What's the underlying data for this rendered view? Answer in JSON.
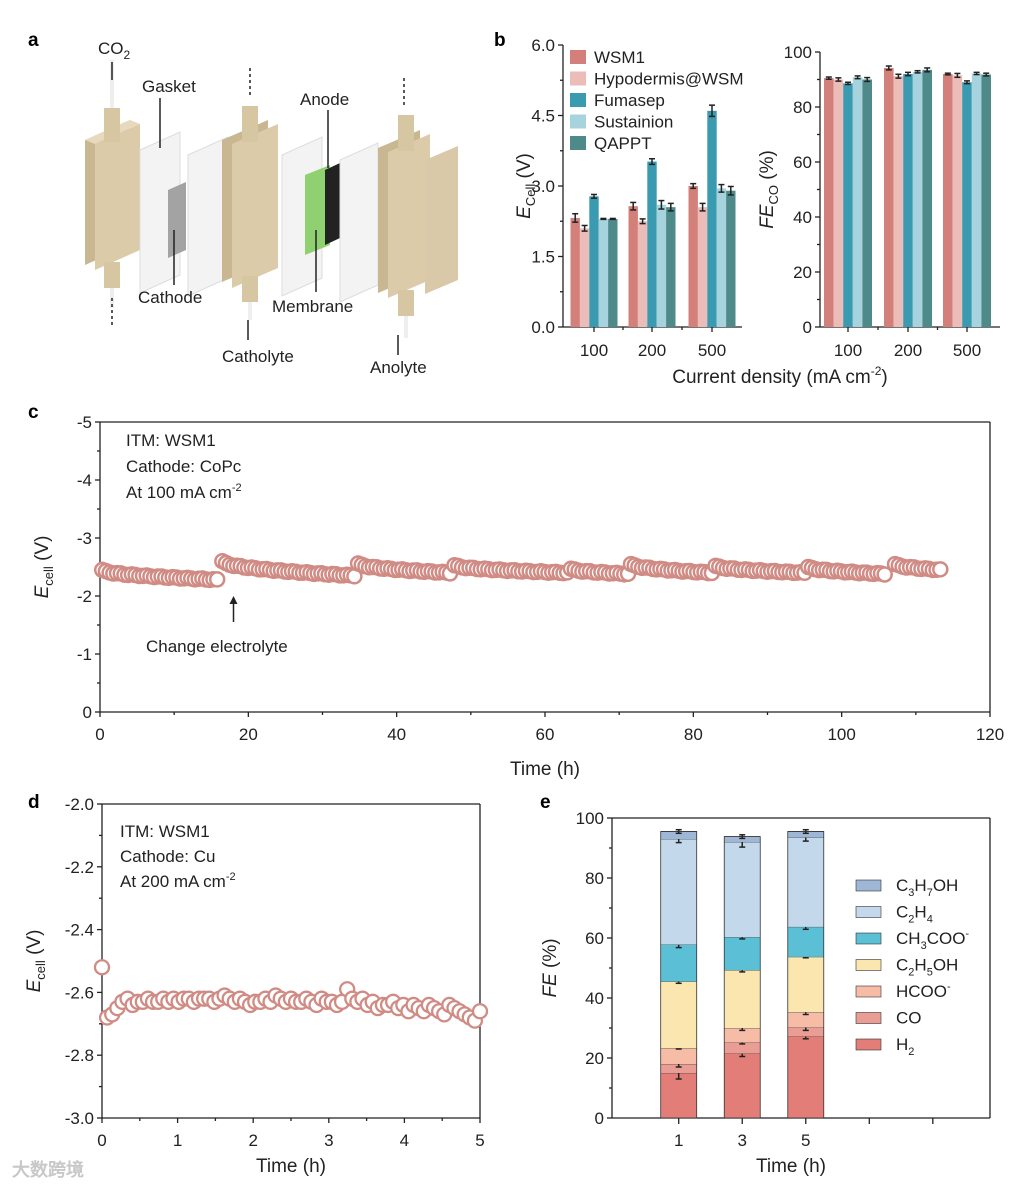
{
  "panels": {
    "a": "a",
    "b": "b",
    "c": "c",
    "d": "d",
    "e": "e"
  },
  "diagram_a": {
    "labels": {
      "co2": "CO",
      "co2_sub": "2",
      "gasket": "Gasket",
      "cathode": "Cathode",
      "catholyte": "Catholyte",
      "membrane": "Membrane",
      "anode": "Anode",
      "anolyte": "Anolyte"
    },
    "colors": {
      "plate": "#d9c9a8",
      "gasket": "#f1f1f1",
      "cathode": "#a3a3a3",
      "membrane": "#8fd070",
      "anode": "#222222"
    }
  },
  "watermark": "大数跨境",
  "chart_data": [
    {
      "id": "b_left",
      "type": "bar",
      "ylabel": "E",
      "ylabel_sub": "Cell",
      "ylabel_unit": " (V)",
      "xlabel": "Current density (mA cm",
      "xlabel_sup": "-2",
      "xlabel_end": ")",
      "categories": [
        "100",
        "200",
        "500"
      ],
      "ylim": [
        0,
        6
      ],
      "yticks": [
        "0.0",
        "1.5",
        "3.0",
        "4.5",
        "6.0"
      ],
      "legend_position": "top-left",
      "series": [
        {
          "name": "WSM1",
          "color": "#d4807a",
          "values": [
            2.32,
            2.57,
            3.0
          ],
          "err": [
            0.09,
            0.08,
            0.05
          ]
        },
        {
          "name": "Hypodermis@WSM",
          "color": "#ebbcb8",
          "values": [
            2.1,
            2.25,
            2.55
          ],
          "err": [
            0.06,
            0.05,
            0.08
          ]
        },
        {
          "name": "Fumasep",
          "color": "#3a9ab0",
          "values": [
            2.78,
            3.52,
            4.6
          ],
          "err": [
            0.04,
            0.06,
            0.12
          ]
        },
        {
          "name": "Sustainion",
          "color": "#a7d3de",
          "values": [
            2.3,
            2.6,
            2.95
          ],
          "err": [
            0.01,
            0.09,
            0.08
          ]
        },
        {
          "name": "QAPPT",
          "color": "#4f8a8b",
          "values": [
            2.3,
            2.55,
            2.9
          ],
          "err": [
            0.01,
            0.08,
            0.09
          ]
        }
      ]
    },
    {
      "id": "b_right",
      "type": "bar",
      "ylabel": "FE",
      "ylabel_sub": "CO",
      "ylabel_unit": " (%)",
      "categories": [
        "100",
        "200",
        "500"
      ],
      "ylim": [
        0,
        100
      ],
      "yticks": [
        "0",
        "20",
        "40",
        "60",
        "80",
        "100"
      ],
      "series": [
        {
          "name": "WSM1",
          "values": [
            90.5,
            94.2,
            92.0
          ],
          "err": [
            0.4,
            0.7,
            0.3
          ]
        },
        {
          "name": "Hypodermis@WSM",
          "values": [
            90.0,
            91.2,
            91.5
          ],
          "err": [
            0.6,
            0.7,
            0.7
          ]
        },
        {
          "name": "Fumasep",
          "values": [
            88.6,
            92.0,
            89.0
          ],
          "err": [
            0.4,
            0.6,
            0.5
          ]
        },
        {
          "name": "Sustainion",
          "values": [
            90.8,
            92.8,
            92.2
          ],
          "err": [
            0.5,
            0.4,
            0.4
          ]
        },
        {
          "name": "QAPPT",
          "values": [
            90.0,
            93.5,
            91.8
          ],
          "err": [
            0.7,
            0.7,
            0.5
          ]
        }
      ]
    },
    {
      "id": "c",
      "type": "scatter",
      "xlabel": "Time (h)",
      "ylabel": "E",
      "ylabel_sub": "cell",
      "ylabel_unit": " (V)",
      "xlim": [
        0,
        120
      ],
      "ylim": [
        -5,
        0
      ],
      "xticks": [
        "0",
        "20",
        "40",
        "60",
        "80",
        "100",
        "120"
      ],
      "yticks": [
        "0",
        "-1",
        "-2",
        "-3",
        "-4",
        "-5"
      ],
      "annotations": {
        "itm": "ITM: WSM1",
        "cathode": "Cathode: CoPc",
        "current": "At 100 mA cm",
        "current_sup": "-2",
        "arrow_text": "Change electrolyte",
        "arrow_time": 18
      },
      "marker_color": "#d08c84",
      "segments": [
        {
          "t0": 0.3,
          "t1": 15.8,
          "v0": -2.55,
          "v1": -2.72
        },
        {
          "t0": 16.5,
          "t1": 34.3,
          "v0": -2.4,
          "v1": -2.65
        },
        {
          "t0": 34.8,
          "t1": 47.2,
          "v0": -2.44,
          "v1": -2.6
        },
        {
          "t0": 47.8,
          "t1": 63.0,
          "v0": -2.47,
          "v1": -2.6
        },
        {
          "t0": 63.5,
          "t1": 71.2,
          "v0": -2.53,
          "v1": -2.62
        },
        {
          "t0": 71.6,
          "t1": 82.5,
          "v0": -2.45,
          "v1": -2.6
        },
        {
          "t0": 83.0,
          "t1": 95.0,
          "v0": -2.48,
          "v1": -2.6
        },
        {
          "t0": 95.5,
          "t1": 105.8,
          "v0": -2.5,
          "v1": -2.62
        },
        {
          "t0": 107.2,
          "t1": 113.3,
          "v0": -2.45,
          "v1": -2.55
        }
      ]
    },
    {
      "id": "d",
      "type": "scatter",
      "xlabel": "Time (h)",
      "ylabel": "E",
      "ylabel_sub": "cell",
      "ylabel_unit": " (V)",
      "xlim": [
        0,
        5
      ],
      "ylim": [
        -3.0,
        -2.0
      ],
      "xticks": [
        "0",
        "1",
        "2",
        "3",
        "4",
        "5"
      ],
      "yticks": [
        "-3.0",
        "-2.8",
        "-2.6",
        "-2.4",
        "-2.2",
        "-2.0"
      ],
      "annotations": {
        "itm": "ITM: WSM1",
        "cathode": "Cathode: Cu",
        "current": "At 200 mA cm",
        "current_sup": "-2"
      },
      "marker_color": "#d08c84",
      "values": [
        -2.52,
        -2.68,
        -2.67,
        -2.65,
        -2.63,
        -2.62,
        -2.64,
        -2.63,
        -2.63,
        -2.62,
        -2.63,
        -2.63,
        -2.62,
        -2.63,
        -2.62,
        -2.63,
        -2.62,
        -2.62,
        -2.63,
        -2.62,
        -2.62,
        -2.62,
        -2.63,
        -2.62,
        -2.61,
        -2.62,
        -2.63,
        -2.62,
        -2.63,
        -2.64,
        -2.63,
        -2.63,
        -2.62,
        -2.63,
        -2.61,
        -2.62,
        -2.63,
        -2.62,
        -2.63,
        -2.63,
        -2.62,
        -2.63,
        -2.64,
        -2.62,
        -2.63,
        -2.63,
        -2.64,
        -2.63,
        -2.59,
        -2.62,
        -2.63,
        -2.62,
        -2.64,
        -2.63,
        -2.65,
        -2.64,
        -2.64,
        -2.63,
        -2.65,
        -2.64,
        -2.66,
        -2.64,
        -2.65,
        -2.66,
        -2.64,
        -2.65,
        -2.66,
        -2.67,
        -2.64,
        -2.65,
        -2.66,
        -2.67,
        -2.68,
        -2.69,
        -2.66
      ]
    },
    {
      "id": "e",
      "type": "bar",
      "stacked": true,
      "xlabel": "Time (h)",
      "ylabel": "FE",
      "ylabel_unit": " (%)",
      "x": [
        1,
        3,
        5
      ],
      "xticks": [
        "1",
        "3",
        "5"
      ],
      "extra_ticks": [
        7,
        9
      ],
      "xlim": [
        -1.1,
        10.8
      ],
      "ylim": [
        0,
        100
      ],
      "yticks": [
        "0",
        "20",
        "40",
        "60",
        "80",
        "100"
      ],
      "legend_position": "right",
      "series": [
        {
          "name": "H2",
          "color": "#e37d78",
          "values": [
            15.0,
            21.5,
            27.2
          ],
          "err": [
            2.0,
            1.0,
            0.8
          ]
        },
        {
          "name": "CO",
          "color": "#ea9d94",
          "values": [
            3.0,
            3.7,
            3.0
          ],
          "err": [
            1.0,
            0.5,
            1.0
          ]
        },
        {
          "name": "HCOO-",
          "color": "#f7bca6",
          "values": [
            5.3,
            4.8,
            5.1
          ],
          "err": [
            0.3,
            0.8,
            0.8
          ]
        },
        {
          "name": "C2H5OH",
          "color": "#fbe6b0",
          "values": [
            22.2,
            19.3,
            18.4
          ],
          "err": [
            0.6,
            0.6,
            0.3
          ]
        },
        {
          "name": "CH3COO-",
          "color": "#5bbfd6",
          "values": [
            12.3,
            11.0,
            10.0
          ],
          "err": [
            1.0,
            0.6,
            0.8
          ]
        },
        {
          "name": "C2H4",
          "color": "#c3d9eb",
          "values": [
            35.2,
            31.7,
            29.8
          ],
          "err": [
            1.2,
            1.7,
            1.2
          ]
        },
        {
          "name": "C3H7OH",
          "color": "#9fb7d6",
          "values": [
            2.5,
            1.8,
            2.0
          ],
          "err": [
            0.6,
            0.6,
            0.6
          ]
        }
      ]
    }
  ]
}
